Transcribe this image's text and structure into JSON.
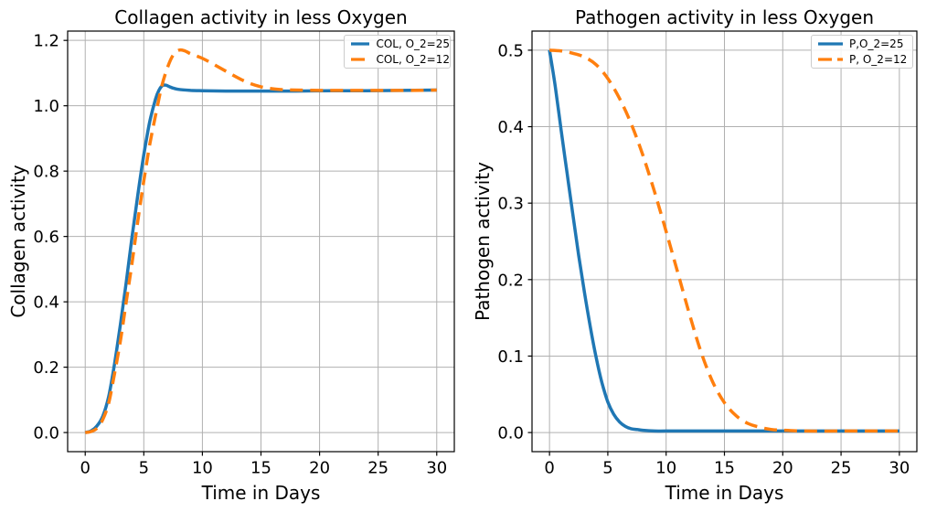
{
  "figure": {
    "background": "#ffffff",
    "grid_color": "#b0b0b0",
    "frame_color": "#000000",
    "text_color": "#000000"
  },
  "chart_data": [
    {
      "type": "line",
      "title": "Collagen activity in less Oxygen",
      "xlabel": "Time in Days",
      "ylabel": "Collagen activity",
      "xlim": [
        -1.5,
        31.5
      ],
      "ylim": [
        -0.0585,
        1.2285
      ],
      "xticks": [
        0,
        5,
        10,
        15,
        20,
        25,
        30
      ],
      "xtick_labels": [
        "0",
        "5",
        "10",
        "15",
        "20",
        "25",
        "30"
      ],
      "yticks": [
        0.0,
        0.2,
        0.4,
        0.6,
        0.8,
        1.0,
        1.2
      ],
      "ytick_labels": [
        "0.0",
        "0.2",
        "0.4",
        "0.6",
        "0.8",
        "1.0",
        "1.2"
      ],
      "grid": true,
      "legend_position": "upper right",
      "series": [
        {
          "label": "COL, O_2=25",
          "color": "#1f77b4",
          "style": "solid",
          "x": [
            0,
            0.5,
            1,
            1.5,
            2,
            2.5,
            3,
            3.5,
            4,
            4.5,
            5,
            5.5,
            6,
            6.3,
            6.6,
            6.9,
            7.2,
            7.6,
            8,
            9,
            10,
            12,
            15,
            18,
            21,
            24,
            27,
            30
          ],
          "y": [
            0,
            0.005,
            0.02,
            0.05,
            0.11,
            0.21,
            0.33,
            0.46,
            0.6,
            0.73,
            0.85,
            0.95,
            1.02,
            1.048,
            1.062,
            1.063,
            1.058,
            1.053,
            1.05,
            1.047,
            1.046,
            1.045,
            1.045,
            1.045,
            1.046,
            1.046,
            1.047,
            1.048
          ]
        },
        {
          "label": "COL, O_2=12",
          "color": "#ff7f0e",
          "style": "dashed",
          "x": [
            0,
            0.5,
            1,
            1.5,
            2,
            2.5,
            3,
            3.5,
            4,
            4.5,
            5,
            5.5,
            6,
            6.5,
            7,
            7.5,
            8,
            8.5,
            9,
            10,
            11,
            12,
            13,
            14,
            15,
            16,
            17,
            18,
            20,
            22,
            25,
            28,
            30
          ],
          "y": [
            0,
            0.003,
            0.013,
            0.04,
            0.09,
            0.18,
            0.28,
            0.4,
            0.52,
            0.65,
            0.77,
            0.88,
            0.97,
            1.055,
            1.115,
            1.155,
            1.17,
            1.168,
            1.159,
            1.145,
            1.126,
            1.106,
            1.086,
            1.069,
            1.058,
            1.052,
            1.049,
            1.048,
            1.047,
            1.047,
            1.047,
            1.047,
            1.048
          ]
        }
      ]
    },
    {
      "type": "line",
      "title": "Pathogen activity in less Oxygen",
      "xlabel": "Time in Days",
      "ylabel": "Pathogen activity",
      "xlim": [
        -1.5,
        31.5
      ],
      "ylim": [
        -0.025,
        0.525
      ],
      "xticks": [
        0,
        5,
        10,
        15,
        20,
        25,
        30
      ],
      "xtick_labels": [
        "0",
        "5",
        "10",
        "15",
        "20",
        "25",
        "30"
      ],
      "yticks": [
        0.0,
        0.1,
        0.2,
        0.3,
        0.4,
        0.5
      ],
      "ytick_labels": [
        "0.0",
        "0.1",
        "0.2",
        "0.3",
        "0.4",
        "0.5"
      ],
      "grid": true,
      "legend_position": "upper right",
      "series": [
        {
          "label": "P,O_2=25",
          "color": "#1f77b4",
          "style": "solid",
          "x": [
            0,
            0.5,
            1,
            1.5,
            2,
            2.5,
            3,
            3.5,
            4,
            4.5,
            5,
            5.5,
            6,
            6.5,
            7,
            7.5,
            8,
            9,
            10,
            12,
            15,
            18,
            21,
            25,
            30
          ],
          "y": [
            0.5,
            0.452,
            0.395,
            0.34,
            0.285,
            0.232,
            0.183,
            0.138,
            0.098,
            0.065,
            0.04,
            0.024,
            0.014,
            0.008,
            0.005,
            0.004,
            0.003,
            0.002,
            0.002,
            0.002,
            0.002,
            0.002,
            0.002,
            0.002,
            0.002
          ]
        },
        {
          "label": "P, O_2=12",
          "color": "#ff7f0e",
          "style": "dashed",
          "x": [
            0,
            1,
            2,
            3,
            4,
            5,
            6,
            7,
            8,
            9,
            10,
            11,
            12,
            13,
            14,
            15,
            16,
            17,
            18,
            19,
            20,
            22,
            25,
            28,
            30
          ],
          "y": [
            0.5,
            0.499,
            0.496,
            0.491,
            0.481,
            0.463,
            0.437,
            0.404,
            0.363,
            0.315,
            0.263,
            0.209,
            0.155,
            0.105,
            0.066,
            0.039,
            0.022,
            0.012,
            0.007,
            0.004,
            0.003,
            0.002,
            0.002,
            0.002,
            0.002
          ]
        }
      ]
    }
  ]
}
